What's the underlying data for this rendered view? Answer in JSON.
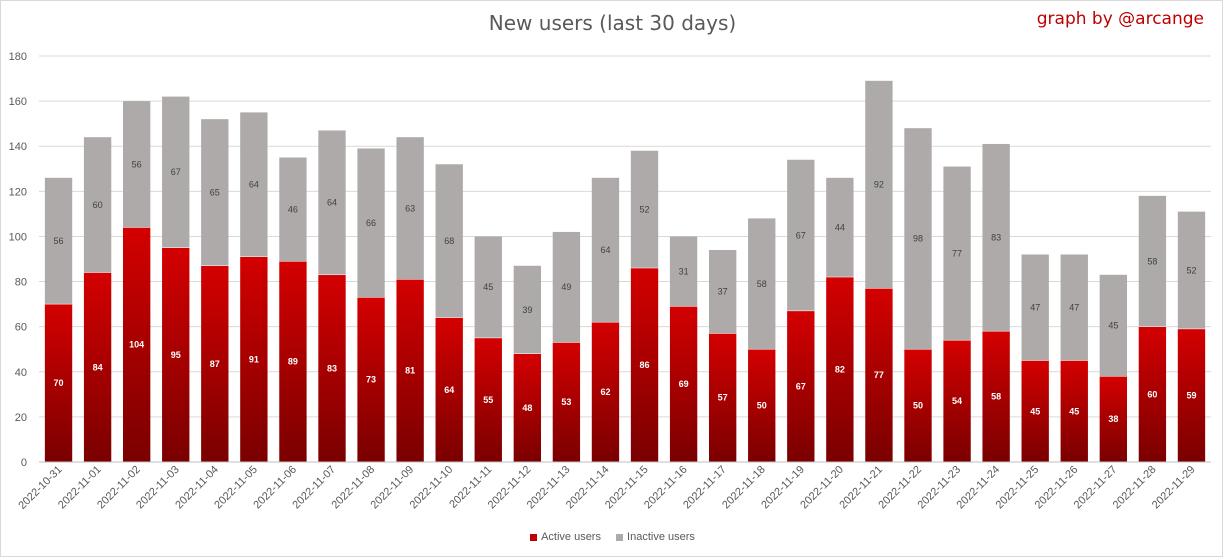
{
  "colors": {
    "active_top": "#d40000",
    "active_bottom": "#7a0000",
    "inactive": "#aeaaaa",
    "grid": "#d9d9d9",
    "axis": "#bfbfbf"
  },
  "credit": "graph by @arcange",
  "chart_data": {
    "type": "bar",
    "stacked": true,
    "title": "New users (last 30 days)",
    "xlabel": "",
    "ylabel": "",
    "ylim": [
      0,
      180
    ],
    "yticks": [
      0,
      20,
      40,
      60,
      80,
      100,
      120,
      140,
      160,
      180
    ],
    "grid": true,
    "legend_position": "bottom",
    "categories": [
      "2022-10-31",
      "2022-11-01",
      "2022-11-02",
      "2022-11-03",
      "2022-11-04",
      "2022-11-05",
      "2022-11-06",
      "2022-11-07",
      "2022-11-08",
      "2022-11-09",
      "2022-11-10",
      "2022-11-11",
      "2022-11-12",
      "2022-11-13",
      "2022-11-14",
      "2022-11-15",
      "2022-11-16",
      "2022-11-17",
      "2022-11-18",
      "2022-11-19",
      "2022-11-20",
      "2022-11-21",
      "2022-11-22",
      "2022-11-23",
      "2022-11-24",
      "2022-11-25",
      "2022-11-26",
      "2022-11-27",
      "2022-11-28",
      "2022-11-29"
    ],
    "series": [
      {
        "name": "Active users",
        "color": "#c00000",
        "values": [
          70,
          84,
          104,
          95,
          87,
          91,
          89,
          83,
          73,
          81,
          64,
          55,
          48,
          53,
          62,
          86,
          69,
          57,
          50,
          67,
          82,
          77,
          50,
          54,
          58,
          45,
          45,
          38,
          60,
          59
        ]
      },
      {
        "name": "Inactive users",
        "color": "#aeaaaa",
        "values": [
          56,
          60,
          56,
          67,
          65,
          64,
          46,
          64,
          66,
          63,
          68,
          45,
          39,
          49,
          64,
          52,
          31,
          37,
          58,
          67,
          44,
          92,
          98,
          77,
          83,
          47,
          47,
          45,
          58,
          52
        ]
      }
    ]
  }
}
